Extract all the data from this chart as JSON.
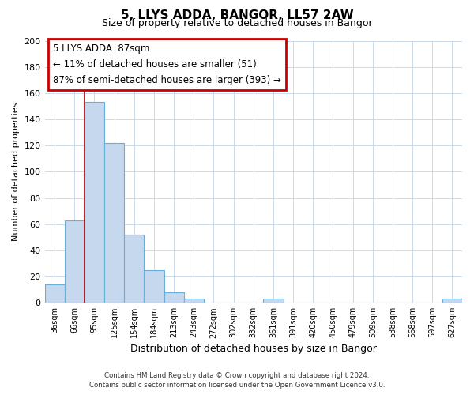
{
  "title": "5, LLYS ADDA, BANGOR, LL57 2AW",
  "subtitle": "Size of property relative to detached houses in Bangor",
  "xlabel": "Distribution of detached houses by size in Bangor",
  "ylabel": "Number of detached properties",
  "bar_labels": [
    "36sqm",
    "66sqm",
    "95sqm",
    "125sqm",
    "154sqm",
    "184sqm",
    "213sqm",
    "243sqm",
    "272sqm",
    "302sqm",
    "332sqm",
    "361sqm",
    "391sqm",
    "420sqm",
    "450sqm",
    "479sqm",
    "509sqm",
    "538sqm",
    "568sqm",
    "597sqm",
    "627sqm"
  ],
  "bar_values": [
    14,
    63,
    153,
    122,
    52,
    25,
    8,
    3,
    0,
    0,
    0,
    3,
    0,
    0,
    0,
    0,
    0,
    0,
    0,
    0,
    3
  ],
  "bar_color": "#c5d8ee",
  "bar_edge_color": "#6baed6",
  "vline_color": "#aa0000",
  "ylim": [
    0,
    200
  ],
  "yticks": [
    0,
    20,
    40,
    60,
    80,
    100,
    120,
    140,
    160,
    180,
    200
  ],
  "annotation_title": "5 LLYS ADDA: 87sqm",
  "annotation_line1": "← 11% of detached houses are smaller (51)",
  "annotation_line2": "87% of semi-detached houses are larger (393) →",
  "annotation_box_color": "#ffffff",
  "annotation_box_edge": "#cc0000",
  "footer_line1": "Contains HM Land Registry data © Crown copyright and database right 2024.",
  "footer_line2": "Contains public sector information licensed under the Open Government Licence v3.0.",
  "background_color": "#ffffff",
  "grid_color": "#ccd9e8"
}
